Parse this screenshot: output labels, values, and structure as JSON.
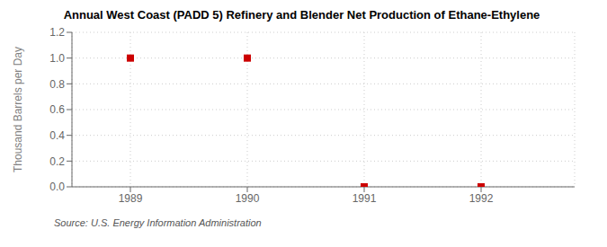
{
  "chart_data": {
    "type": "scatter",
    "title": "Annual West Coast (PADD 5) Refinery and Blender Net Production of Ethane-Ethylene",
    "ylabel": "Thousand Barrels per Day",
    "annotation": "Source: U.S. Energy Information Administration",
    "x": [
      1989,
      1990,
      1991,
      1992
    ],
    "values": [
      1.0,
      1.0,
      0.0,
      0.0
    ],
    "xlim": [
      1988.5,
      1992.8
    ],
    "xticks": [
      1989,
      1990,
      1991,
      1992
    ],
    "ylim": [
      0.0,
      1.2
    ],
    "yticks": [
      {
        "value": 0.0,
        "label": "0.0"
      },
      0.2,
      0.4,
      0.6,
      0.8,
      {
        "value": 1.0,
        "label": "1.0"
      },
      {
        "value": 1.2,
        "label": "1.2"
      }
    ],
    "color": "#cc0000",
    "marker": "square",
    "grid": true
  }
}
